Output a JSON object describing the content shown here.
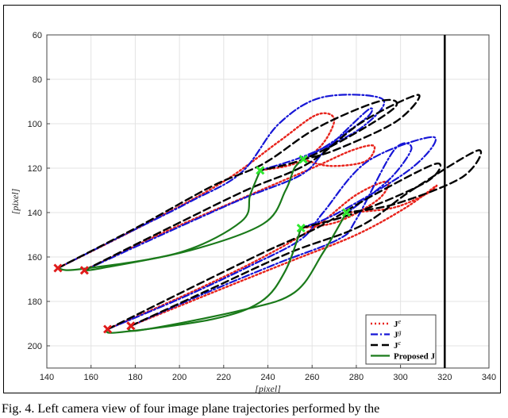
{
  "caption": "Fig. 4.   Left camera view of four image plane trajectories performed by the",
  "chart_data": {
    "type": "line",
    "xlabel": "[pixel]",
    "ylabel": "[pixel]",
    "xlim": [
      140,
      340
    ],
    "ylim": [
      210,
      60
    ],
    "y_inverted": true,
    "grid": true,
    "x_ticks": [
      140,
      160,
      180,
      200,
      220,
      240,
      260,
      280,
      300,
      320,
      340
    ],
    "y_ticks": [
      60,
      80,
      100,
      120,
      140,
      160,
      180,
      200
    ],
    "boundary_line": {
      "x": 320,
      "color": "#000000"
    },
    "legend_position": "bottom-right",
    "legend": [
      {
        "label": "J",
        "superscript": "e",
        "series": "Je"
      },
      {
        "label": "J",
        "superscript": "g",
        "series": "Jg"
      },
      {
        "label": "J",
        "superscript": "c",
        "series": "Jc"
      },
      {
        "label": "Proposed J",
        "superscript": "",
        "series": "proposed"
      }
    ],
    "start_points": [
      [
        145,
        165
      ],
      [
        157,
        166
      ],
      [
        167.5,
        192.5
      ],
      [
        178,
        191
      ]
    ],
    "goal_points": [
      [
        236.5,
        121
      ],
      [
        256,
        116
      ],
      [
        255,
        147
      ],
      [
        275.5,
        140
      ]
    ],
    "series": [
      {
        "key": "Je",
        "color": "#e8231b",
        "dash": "2,3",
        "width": 2.4,
        "trajectories": [
          [
            [
              145,
              165
            ],
            [
              185,
              145
            ],
            [
              220,
              126
            ],
            [
              245,
              108
            ],
            [
              262,
              96
            ],
            [
              270,
              98
            ],
            [
              264,
              110
            ],
            [
              252,
              118
            ],
            [
              236.5,
              121
            ]
          ],
          [
            [
              157,
              166
            ],
            [
              195,
              148
            ],
            [
              232,
              132
            ],
            [
              260,
              120
            ],
            [
              278,
              112
            ],
            [
              288,
              110
            ],
            [
              284,
              117
            ],
            [
              268,
              119
            ],
            [
              256,
              116
            ]
          ],
          [
            [
              167.5,
              192.5
            ],
            [
              205,
              176
            ],
            [
              238,
              160
            ],
            [
              262,
              146
            ],
            [
              280,
              132
            ],
            [
              294,
              126
            ],
            [
              290,
              134
            ],
            [
              272,
              144
            ],
            [
              255,
              147
            ]
          ],
          [
            [
              178,
              191
            ],
            [
              215,
              176
            ],
            [
              250,
              162
            ],
            [
              280,
              150
            ],
            [
              302,
              138
            ],
            [
              316,
              128
            ],
            [
              311,
              132
            ],
            [
              296,
              138
            ],
            [
              275.5,
              140
            ]
          ]
        ]
      },
      {
        "key": "Jg",
        "color": "#1616d6",
        "dash": "9,3,2,3",
        "width": 2.2,
        "trajectories": [
          [
            [
              145,
              165
            ],
            [
              175,
              150
            ],
            [
              205,
              135
            ],
            [
              228,
              122
            ],
            [
              245,
              100
            ],
            [
              265,
              88
            ],
            [
              292,
              89
            ],
            [
              282,
              102
            ],
            [
              258,
              114
            ],
            [
              236.5,
              121
            ]
          ],
          [
            [
              157,
              166
            ],
            [
              192,
              150
            ],
            [
              228,
              134
            ],
            [
              255,
              123
            ],
            [
              266,
              112
            ],
            [
              285,
              94
            ],
            [
              285,
              97
            ],
            [
              268,
              109
            ],
            [
              256,
              116
            ]
          ],
          [
            [
              167.5,
              192.5
            ],
            [
              202,
              178
            ],
            [
              232,
              164
            ],
            [
              255,
              152
            ],
            [
              265,
              140
            ],
            [
              285,
              117
            ],
            [
              315,
              106
            ],
            [
              305,
              120
            ],
            [
              272,
              140
            ],
            [
              255,
              147
            ]
          ],
          [
            [
              178,
              191
            ],
            [
              210,
              177
            ],
            [
              244,
              163
            ],
            [
              272,
              152
            ],
            [
              280,
              143
            ],
            [
              297,
              112
            ],
            [
              305,
              111
            ],
            [
              296,
              124
            ],
            [
              280,
              137
            ],
            [
              275.5,
              140
            ]
          ]
        ]
      },
      {
        "key": "Jc",
        "color": "#000000",
        "dash": "9,5",
        "width": 2.4,
        "trajectories": [
          [
            [
              145,
              165
            ],
            [
              182,
              146
            ],
            [
              215,
              128
            ],
            [
              238,
              118
            ],
            [
              262,
              102
            ],
            [
              290,
              90
            ],
            [
              298,
              92
            ],
            [
              280,
              104
            ],
            [
              256,
              116
            ],
            [
              236.5,
              121
            ]
          ],
          [
            [
              157,
              166
            ],
            [
              195,
              147
            ],
            [
              230,
              130
            ],
            [
              258,
              118
            ],
            [
              283,
              99
            ],
            [
              308,
              87
            ],
            [
              298,
              99
            ],
            [
              270,
              112
            ],
            [
              256,
              116
            ]
          ],
          [
            [
              167.5,
              192.5
            ],
            [
              205,
              174
            ],
            [
              238,
              158
            ],
            [
              262,
              147
            ],
            [
              288,
              132
            ],
            [
              316,
              118
            ],
            [
              312,
              126
            ],
            [
              280,
              140
            ],
            [
              255,
              147
            ]
          ],
          [
            [
              178,
              191
            ],
            [
              215,
              174
            ],
            [
              250,
              158
            ],
            [
              282,
              146
            ],
            [
              305,
              130
            ],
            [
              335,
              112
            ],
            [
              328,
              124
            ],
            [
              298,
              136
            ],
            [
              275.5,
              140
            ]
          ]
        ]
      },
      {
        "key": "proposed",
        "color": "#1a7a1a",
        "dash": "",
        "width": 2.2,
        "trajectories": [
          [
            [
              145,
              165
            ],
            [
              155,
              165.5
            ],
            [
              200,
              158
            ],
            [
              228,
              144
            ],
            [
              232,
              132
            ],
            [
              236.5,
              121
            ]
          ],
          [
            [
              157,
              166
            ],
            [
              165,
              165
            ],
            [
              205,
              157
            ],
            [
              238,
              145
            ],
            [
              248,
              130
            ],
            [
              252,
              120
            ],
            [
              256,
              116
            ]
          ],
          [
            [
              167.5,
              192.5
            ],
            [
              172,
              194
            ],
            [
              215,
              188
            ],
            [
              237,
              180
            ],
            [
              248,
              166
            ],
            [
              255,
              147
            ]
          ],
          [
            [
              178,
              191
            ],
            [
              182,
              193
            ],
            [
              228,
              184
            ],
            [
              252,
              176
            ],
            [
              265,
              158
            ],
            [
              275.5,
              140
            ]
          ]
        ]
      }
    ]
  }
}
